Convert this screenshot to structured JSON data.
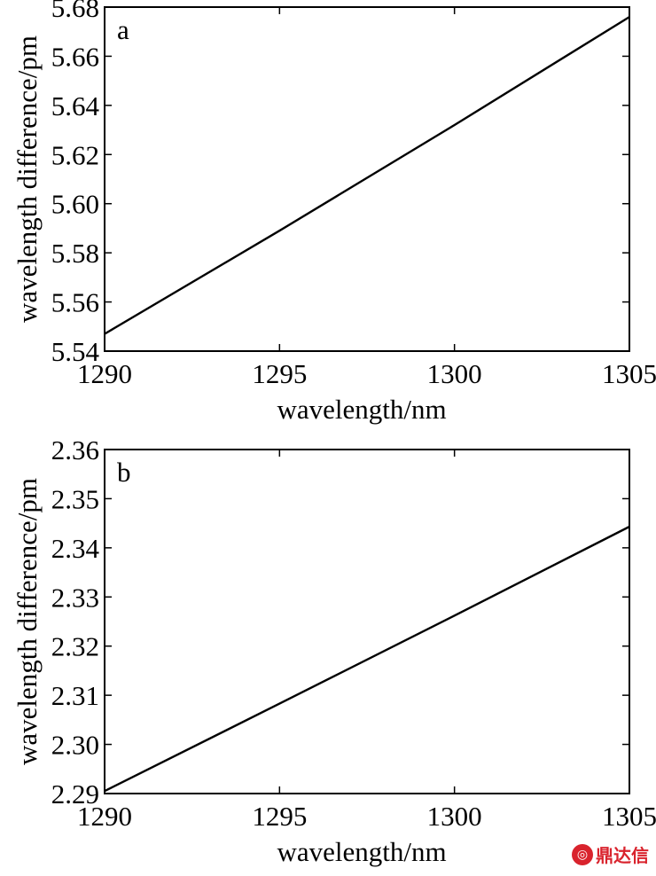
{
  "chart_data": [
    {
      "type": "line",
      "panel_label": "a",
      "xlabel": "wavelength/nm",
      "ylabel": "wavelength difference/pm",
      "xlim": [
        1290,
        1305
      ],
      "ylim": [
        5.54,
        5.68
      ],
      "xticks": [
        "1290",
        "1295",
        "1300",
        "1305"
      ],
      "yticks": [
        "5.54",
        "5.56",
        "5.58",
        "5.60",
        "5.62",
        "5.64",
        "5.66",
        "5.68"
      ],
      "grid": false,
      "series": [
        {
          "x": [
            1290,
            1295,
            1300,
            1305
          ],
          "y": [
            5.547,
            5.589,
            5.632,
            5.676
          ]
        }
      ]
    },
    {
      "type": "line",
      "panel_label": "b",
      "xlabel": "wavelength/nm",
      "ylabel": "wavelength difference/pm",
      "xlim": [
        1290,
        1305
      ],
      "ylim": [
        2.29,
        2.36
      ],
      "xticks": [
        "1290",
        "1295",
        "1300",
        "1305"
      ],
      "yticks": [
        "2.29",
        "2.30",
        "2.31",
        "2.32",
        "2.33",
        "2.34",
        "2.35",
        "2.36"
      ],
      "grid": false,
      "series": [
        {
          "x": [
            1290,
            1295,
            1300,
            1305
          ],
          "y": [
            2.2905,
            2.3083,
            2.3262,
            2.3443
          ]
        }
      ]
    }
  ],
  "watermark": {
    "text": "鼎达信",
    "logo_color": "#d9232d",
    "icon": "dingdaxin-logo-icon"
  }
}
